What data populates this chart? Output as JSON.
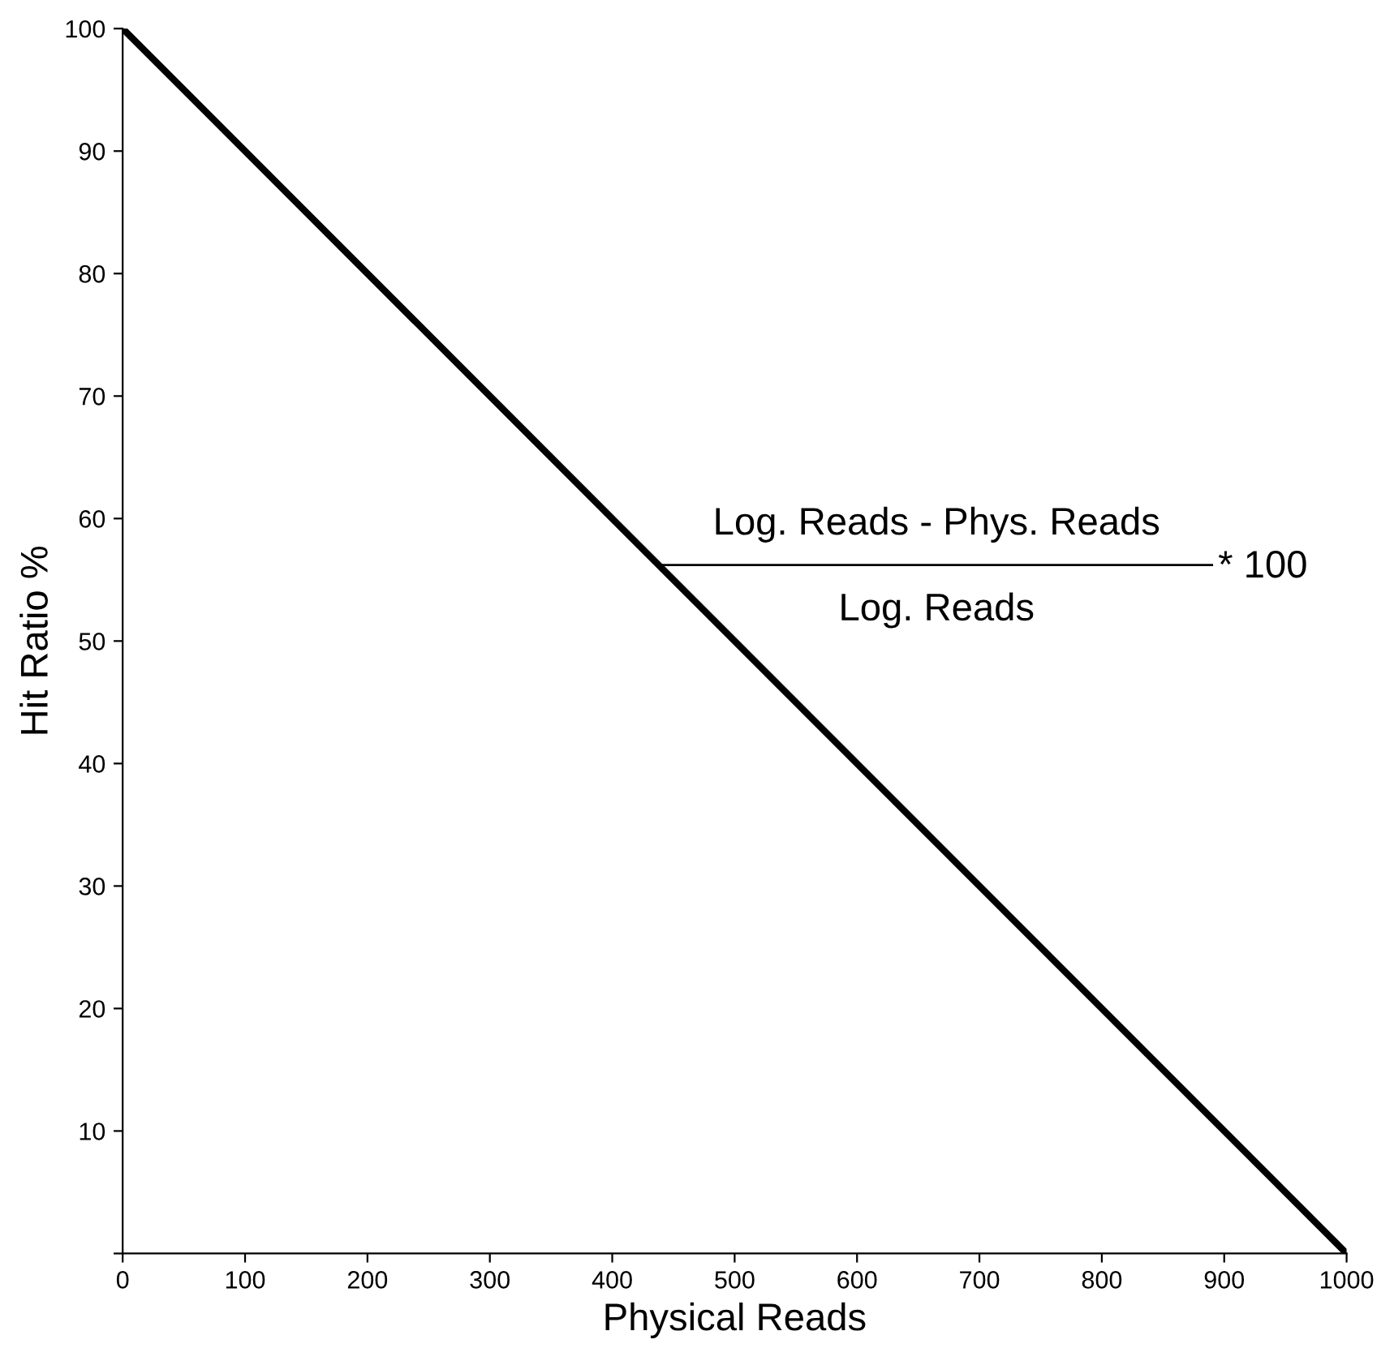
{
  "chart_data": {
    "type": "line",
    "xlabel": "Physical Reads",
    "ylabel": "Hit Ratio %",
    "x": [
      0,
      1000
    ],
    "series": [
      {
        "color": "#000000",
        "values": [
          100,
          0
        ]
      }
    ],
    "xlim": [
      0,
      1000
    ],
    "ylim": [
      0,
      100
    ],
    "xticks": [
      0,
      100,
      200,
      300,
      400,
      500,
      600,
      700,
      800,
      900,
      1000
    ],
    "yticks": [
      {
        "value": 0,
        "label": null
      },
      10,
      20,
      30,
      40,
      50,
      60,
      70,
      80,
      90,
      100
    ],
    "grid": false,
    "legend": false,
    "marker": "none",
    "line_style": "solid",
    "annotations": [
      "Log. Reads - Phys. Reads",
      "Log. Reads",
      "* 100"
    ]
  }
}
